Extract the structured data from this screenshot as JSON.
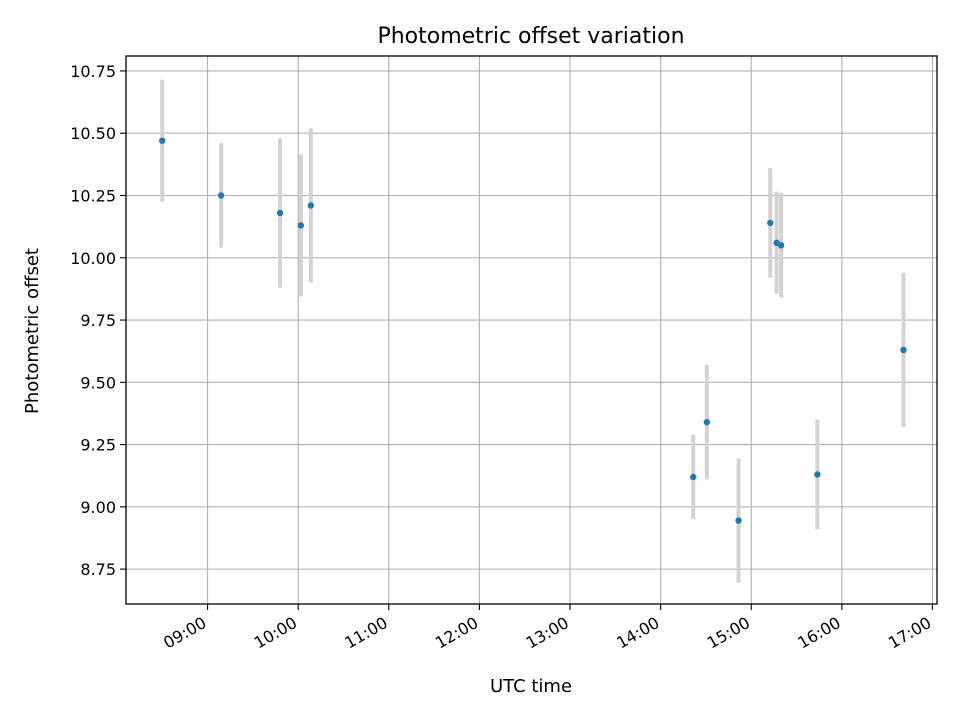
{
  "chart_data": {
    "type": "scatter",
    "title": "Photometric offset variation",
    "xlabel": "UTC time",
    "ylabel": "Photometric offset",
    "grid": true,
    "x_unit": "hours",
    "xlim": [
      8.1,
      17.05
    ],
    "ylim": [
      8.61,
      10.81
    ],
    "x_ticks": [
      {
        "value": 9,
        "label": "09:00"
      },
      {
        "value": 10,
        "label": "10:00"
      },
      {
        "value": 11,
        "label": "11:00"
      },
      {
        "value": 12,
        "label": "12:00"
      },
      {
        "value": 13,
        "label": "13:00"
      },
      {
        "value": 14,
        "label": "14:00"
      },
      {
        "value": 15,
        "label": "15:00"
      },
      {
        "value": 16,
        "label": "16:00"
      },
      {
        "value": 17,
        "label": "17:00"
      }
    ],
    "y_ticks": [
      {
        "value": 8.75,
        "label": "8.75"
      },
      {
        "value": 9.0,
        "label": "9.00"
      },
      {
        "value": 9.25,
        "label": "9.25"
      },
      {
        "value": 9.5,
        "label": "9.50"
      },
      {
        "value": 9.75,
        "label": "9.75"
      },
      {
        "value": 10.0,
        "label": "10.00"
      },
      {
        "value": 10.25,
        "label": "10.25"
      },
      {
        "value": 10.5,
        "label": "10.50"
      },
      {
        "value": 10.75,
        "label": "10.75"
      }
    ],
    "series": [
      {
        "name": "offset",
        "color": "#1f77b4",
        "errorbar_color": "#d3d3d3",
        "points": [
          {
            "x": 8.5,
            "y": 10.47,
            "err": 0.245
          },
          {
            "x": 9.15,
            "y": 10.25,
            "err": 0.21
          },
          {
            "x": 9.8,
            "y": 10.18,
            "err": 0.3
          },
          {
            "x": 10.03,
            "y": 10.13,
            "err": 0.285
          },
          {
            "x": 10.14,
            "y": 10.21,
            "err": 0.31
          },
          {
            "x": 14.36,
            "y": 9.12,
            "err": 0.17
          },
          {
            "x": 14.51,
            "y": 9.34,
            "err": 0.23
          },
          {
            "x": 14.86,
            "y": 8.945,
            "err": 0.25
          },
          {
            "x": 15.21,
            "y": 10.14,
            "err": 0.22
          },
          {
            "x": 15.28,
            "y": 10.06,
            "err": 0.205
          },
          {
            "x": 15.33,
            "y": 10.05,
            "err": 0.21
          },
          {
            "x": 15.73,
            "y": 9.13,
            "err": 0.22
          },
          {
            "x": 16.68,
            "y": 9.63,
            "err": 0.31
          }
        ]
      }
    ]
  }
}
